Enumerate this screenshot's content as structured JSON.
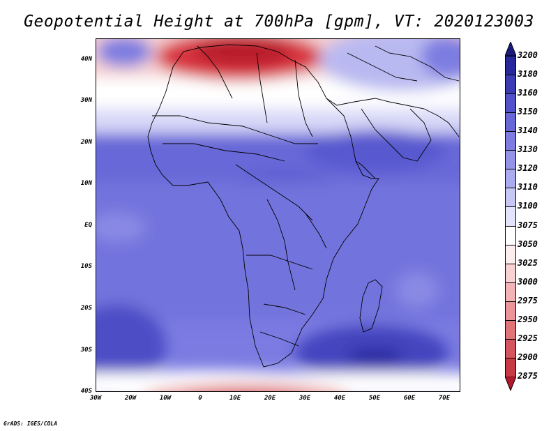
{
  "title": "Geopotential Height at 700hPa [gpm], VT: 2020123003",
  "footer": "GrADS: IGES/COLA",
  "map": {
    "variable": "Geopotential Height",
    "level": "700hPa",
    "units": "gpm",
    "valid_time": "2020123003",
    "lon_range": [
      -30,
      75
    ],
    "lat_range": [
      -40,
      45
    ],
    "lat_labels": [
      "40N",
      "30N",
      "20N",
      "10N",
      "EQ",
      "10S",
      "20S",
      "30S",
      "40S"
    ],
    "lon_labels": [
      "30W",
      "20W",
      "10W",
      "0",
      "10E",
      "20E",
      "30E",
      "40E",
      "50E",
      "60E",
      "70E"
    ]
  },
  "colorbar": {
    "levels": [
      "2875",
      "2900",
      "2925",
      "2950",
      "2975",
      "3000",
      "3025",
      "3050",
      "3075",
      "3100",
      "3110",
      "3120",
      "3130",
      "3140",
      "3150",
      "3160",
      "3180",
      "3200"
    ],
    "colors": [
      "#b2182b",
      "#c53a44",
      "#d4555e",
      "#e07479",
      "#eb9499",
      "#f3b4b7",
      "#f8d2d3",
      "#fdeded",
      "#ffffff",
      "#e3e3fb",
      "#c7c7f5",
      "#ababef",
      "#9393e8",
      "#7d7de1",
      "#6767d8",
      "#5151c9",
      "#3b3bb4",
      "#28289c",
      "#1a1a7e"
    ]
  }
}
